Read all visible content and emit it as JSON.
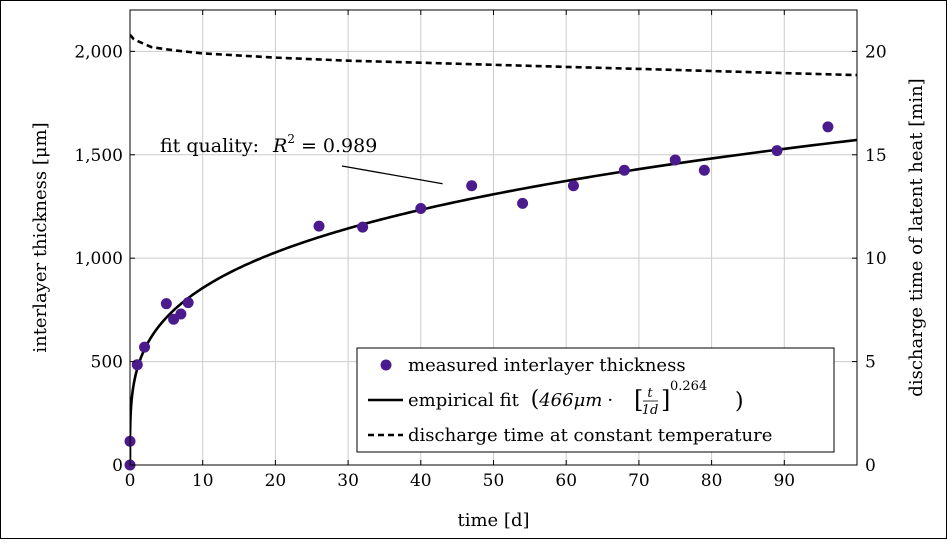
{
  "chart_data": {
    "type": "scatter",
    "xlabel": "time [d]",
    "ylabel": "interlayer thickness [μm]",
    "y2label": "discharge time of latent heat [min]",
    "xlim": [
      0,
      100
    ],
    "ylim": [
      0,
      2200
    ],
    "y2lim": [
      0,
      22
    ],
    "x_ticks": [
      0,
      10,
      20,
      30,
      40,
      50,
      60,
      70,
      80,
      90
    ],
    "y_ticks": [
      0,
      500,
      1000,
      1500,
      2000
    ],
    "y_tick_labels": [
      "0",
      "500",
      "1,000",
      "1,500",
      "2,000"
    ],
    "y2_ticks": [
      0,
      5,
      10,
      15,
      20
    ],
    "grid": true,
    "legend_position": "bottom-right",
    "annotation": {
      "text": "fit quality: R² = 0.989",
      "prefix": "fit quality:",
      "r2_value": "0.989",
      "points_to": [
        43,
        1360
      ]
    },
    "series": [
      {
        "name": "measured interlayer thickness",
        "kind": "scatter",
        "color": "#4b1a8c",
        "x": [
          0,
          0,
          1,
          2,
          5,
          6,
          7,
          8,
          26,
          32,
          40,
          47,
          54,
          61,
          68,
          75,
          79,
          89,
          96
        ],
        "y": [
          0,
          115,
          485,
          570,
          780,
          705,
          730,
          785,
          1155,
          1150,
          1240,
          1350,
          1265,
          1350,
          1425,
          1475,
          1425,
          1520,
          1635
        ]
      },
      {
        "name": "empirical fit",
        "legend_text": "empirical fit",
        "formula_coefficient": "466μm",
        "formula_exponent": "0.264",
        "formula_t": "t",
        "formula_unit": "1d",
        "kind": "line",
        "style": "solid",
        "color": "#000000",
        "coefficient": 466,
        "exponent": 0.264
      },
      {
        "name": "discharge time at constant temperature",
        "kind": "line",
        "style": "dashed",
        "axis": "right",
        "color": "#000000",
        "x": [
          0,
          0.5,
          1,
          3,
          6,
          10,
          20,
          30,
          40,
          50,
          60,
          70,
          80,
          90,
          100
        ],
        "y": [
          20.8,
          20.6,
          20.5,
          20.2,
          20.05,
          19.9,
          19.7,
          19.55,
          19.45,
          19.35,
          19.25,
          19.15,
          19.05,
          18.95,
          18.85
        ]
      }
    ]
  }
}
